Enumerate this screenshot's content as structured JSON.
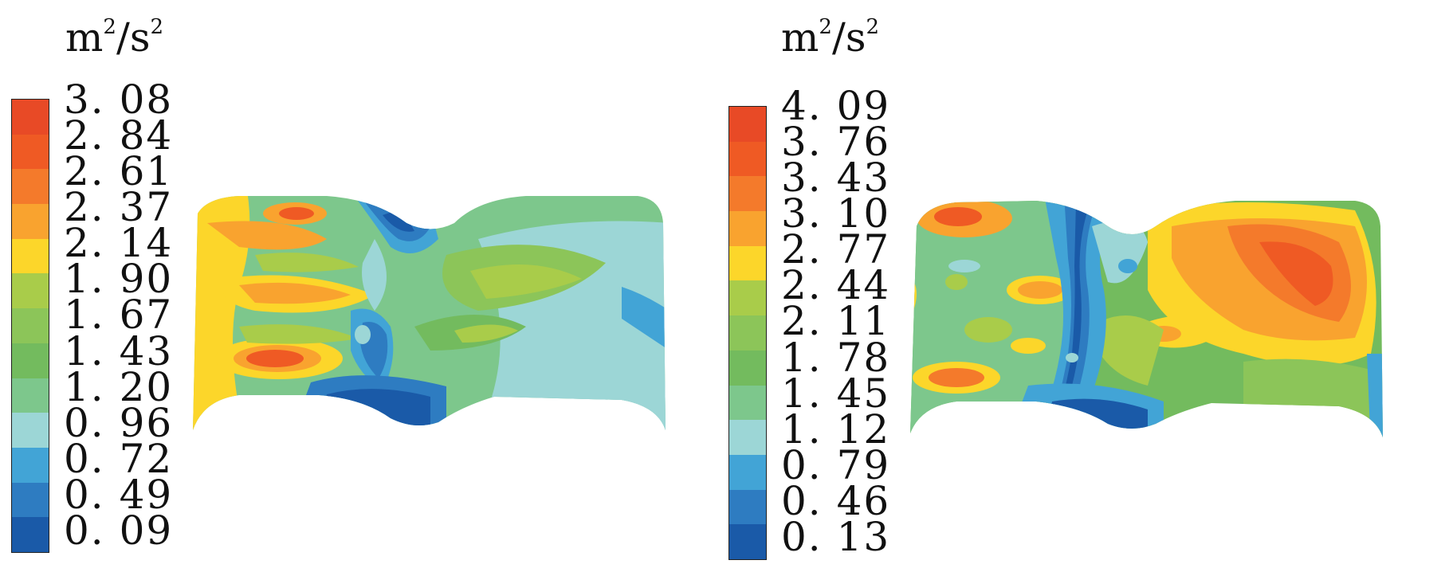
{
  "panels": [
    {
      "unit": {
        "base": "m",
        "exp1": "2",
        "sep": "/",
        "base2": "s",
        "exp2": "2"
      },
      "legend_values": [
        "3. 08",
        "2. 84",
        "2. 61",
        "2. 37",
        "2. 14",
        "1. 90",
        "1. 67",
        "1. 43",
        "1. 20",
        "0. 96",
        "0. 72",
        "0. 49",
        "0. 09"
      ],
      "colors": [
        "#e84a26",
        "#ef5a24",
        "#f47a2b",
        "#f9a32f",
        "#fcd62a",
        "#a9cc4a",
        "#8cc559",
        "#73bb5e",
        "#7dc78c",
        "#9cd6d6",
        "#42a4d6",
        "#2e7cc1",
        "#1a5aa8"
      ]
    },
    {
      "unit": {
        "base": "m",
        "exp1": "2",
        "sep": "/",
        "base2": "s",
        "exp2": "2"
      },
      "legend_values": [
        "4. 09",
        "3. 76",
        "3. 43",
        "3. 10",
        "2. 77",
        "2. 44",
        "2. 11",
        "1. 78",
        "1. 45",
        "1. 12",
        "0. 79",
        "0. 46",
        "0. 13"
      ],
      "colors": [
        "#e84a26",
        "#ef5a24",
        "#f47a2b",
        "#f9a32f",
        "#fcd62a",
        "#a9cc4a",
        "#8cc559",
        "#73bb5e",
        "#7dc78c",
        "#9cd6d6",
        "#42a4d6",
        "#2e7cc1",
        "#1a5aa8"
      ]
    }
  ]
}
